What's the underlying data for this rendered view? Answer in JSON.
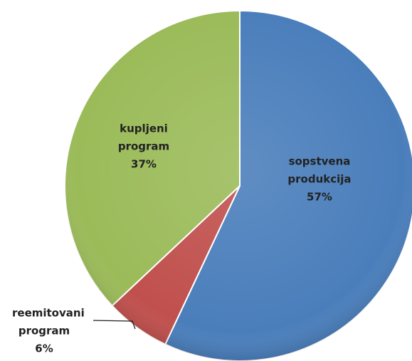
{
  "chart_data": {
    "type": "pie",
    "categories": [
      "sopstvena produkcija",
      "reemitovani program",
      "kupljeni program"
    ],
    "values": [
      57,
      6,
      37
    ],
    "value_labels": [
      "57%",
      "6%",
      "37%"
    ],
    "colors": [
      "#4a7ebb",
      "#c0504d",
      "#9bbb59"
    ]
  }
}
